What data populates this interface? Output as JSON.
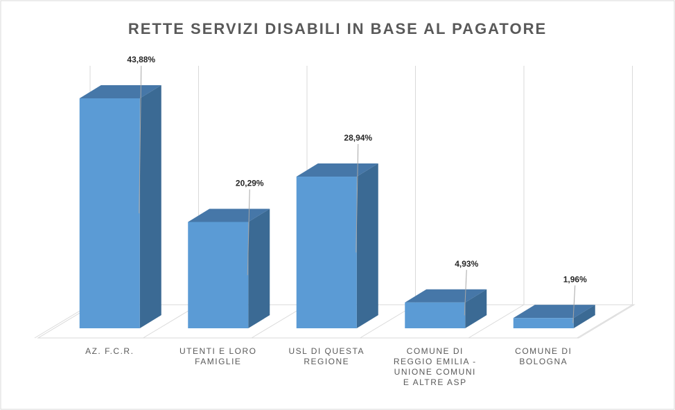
{
  "chart_data": {
    "type": "bar3d",
    "title": "RETTE SERVIZI DISABILI IN BASE AL PAGATORE",
    "categories": [
      "AZ. F.C.R.",
      "UTENTI E LORO FAMIGLIE",
      "USL DI QUESTA REGIONE",
      "COMUNE DI REGGIO EMILIA - UNIONE COMUNI E ALTRE ASP",
      "COMUNE DI BOLOGNA"
    ],
    "values": [
      43.88,
      20.29,
      28.94,
      4.93,
      1.96
    ],
    "value_labels": [
      "43,88%",
      "20,29%",
      "28,94%",
      "4,93%",
      "1,96%"
    ],
    "color": "#5b9bd5",
    "grid": true
  }
}
